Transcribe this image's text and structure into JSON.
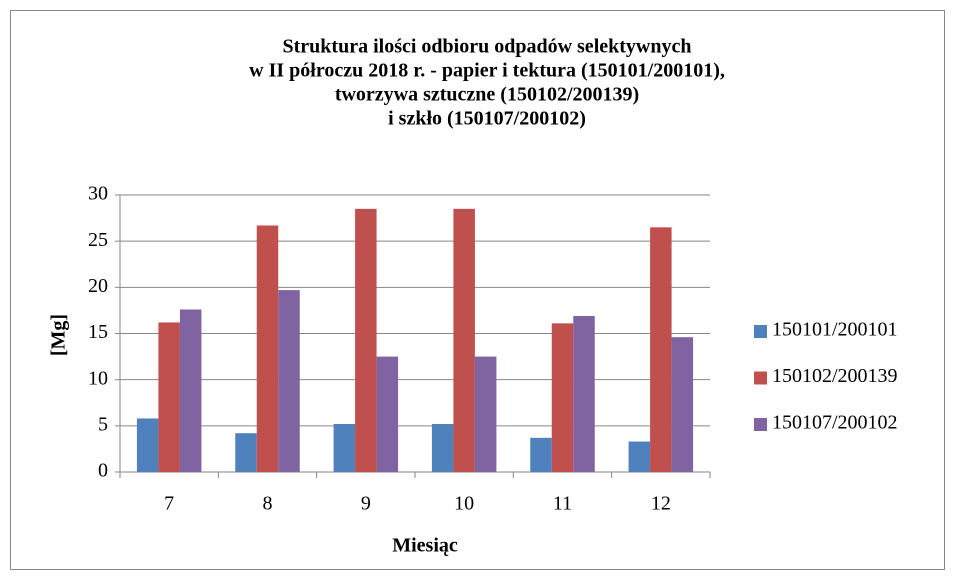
{
  "chart_data": {
    "type": "bar",
    "title": [
      "Struktura ilości odbioru odpadów selektywnych",
      "w II półroczu 2018 r. - papier i tektura (150101/200101),",
      "tworzywa sztuczne (150102/200139)",
      "i szkło (150107/200102)"
    ],
    "x_label": "Miesiąc",
    "y_label": "[Mg]",
    "categories": [
      "7",
      "8",
      "9",
      "10",
      "11",
      "12"
    ],
    "series": [
      {
        "name": "150101/200101",
        "color": "#4f81bd",
        "values": [
          5.8,
          4.2,
          5.2,
          5.2,
          3.7,
          3.3
        ]
      },
      {
        "name": "150102/200139",
        "color": "#c0504d",
        "values": [
          16.2,
          26.7,
          28.5,
          28.5,
          16.1,
          26.5
        ]
      },
      {
        "name": "150107/200102",
        "color": "#8064a2",
        "values": [
          17.6,
          19.7,
          12.5,
          12.5,
          16.9,
          14.6
        ]
      }
    ],
    "ylim": [
      0,
      30
    ],
    "yticks": [
      0,
      5,
      10,
      15,
      20,
      25,
      30
    ],
    "grid": true,
    "legend": "right"
  }
}
